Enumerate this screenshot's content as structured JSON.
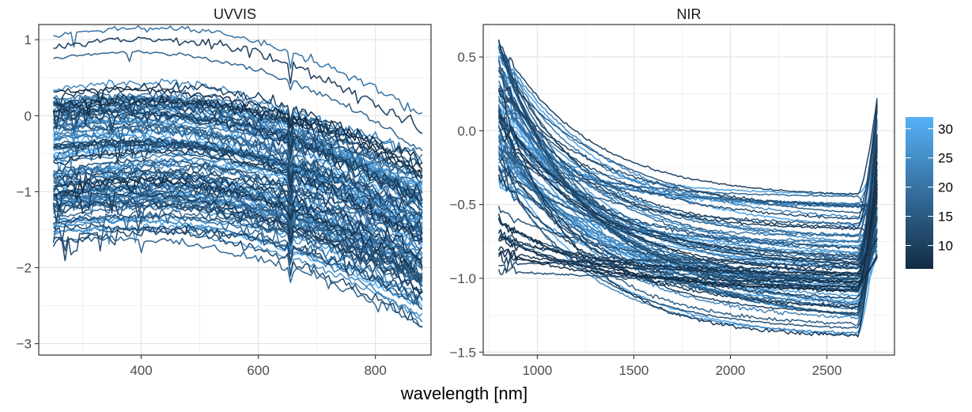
{
  "chart_data": {
    "type": "line",
    "xlabel": "wavelength [nm]",
    "color_scale": {
      "low_color": "#132B43",
      "high_color": "#56B1F7",
      "min": 6,
      "max": 32,
      "ticks": [
        "10",
        "15",
        "20",
        "25",
        "30"
      ],
      "tick_values": [
        10,
        15,
        20,
        25,
        30
      ]
    },
    "facets": [
      {
        "name": "UVVIS",
        "xlim": [
          225,
          895
        ],
        "ylim": [
          -3.15,
          1.2
        ],
        "x_ticks": [
          400,
          600,
          800
        ],
        "x_tick_labels": [
          "400",
          "600",
          "800"
        ],
        "y_ticks": [
          1,
          0,
          -1,
          -2,
          -3
        ],
        "y_tick_labels": [
          "1",
          "0",
          "−1",
          "−2",
          "−3"
        ],
        "x_range": [
          250,
          880
        ],
        "series_summary": {
          "count": 110,
          "start_y_range": [
            -1.7,
            1.05
          ],
          "end_y_range": [
            -2.8,
            -0.3
          ],
          "feature": "sharp dip near 656 nm"
        }
      },
      {
        "name": "NIR",
        "xlim": [
          720,
          2850
        ],
        "ylim": [
          -1.52,
          0.72
        ],
        "x_ticks": [
          1000,
          1500,
          2000,
          2500
        ],
        "x_tick_labels": [
          "1000",
          "1500",
          "2000",
          "2500"
        ],
        "y_ticks": [
          0.5,
          0.0,
          -0.5,
          -1.0,
          -1.5
        ],
        "y_tick_labels": [
          "0.5",
          "0.0",
          "−0.5",
          "−1.0",
          "−1.5"
        ],
        "x_range": [
          800,
          2760
        ],
        "series_summary": {
          "count": 90,
          "start_y_range": [
            -0.95,
            0.62
          ],
          "plateau_y_range": [
            -1.45,
            -0.42
          ],
          "end_y_range": [
            -0.9,
            0.27
          ]
        }
      }
    ]
  }
}
